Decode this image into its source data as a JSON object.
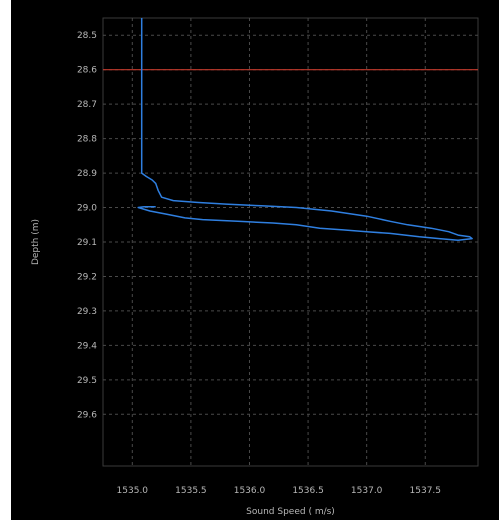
{
  "chart_data": {
    "type": "line",
    "title": "",
    "xlabel": "Sound Speed ( m/s)",
    "ylabel": "Depth (m)",
    "xlim": [
      1534.75,
      1537.95
    ],
    "ylim": [
      28.45,
      29.75
    ],
    "y_inverted": true,
    "grid": true,
    "x_ticks": [
      "1535.0",
      "1535.5",
      "1536.0",
      "1536.5",
      "1537.0",
      "1537.5"
    ],
    "x_tick_values": [
      1535.0,
      1535.5,
      1536.0,
      1536.5,
      1537.0,
      1537.5
    ],
    "y_ticks": [
      "28.5",
      "28.6",
      "28.7",
      "28.8",
      "28.9",
      "29.0",
      "29.1",
      "29.2",
      "29.3",
      "29.4",
      "29.5",
      "29.6"
    ],
    "y_tick_values": [
      28.5,
      28.6,
      28.7,
      28.8,
      28.9,
      29.0,
      29.1,
      29.2,
      29.3,
      29.4,
      29.5,
      29.6
    ],
    "reference_line": {
      "depth": 28.6,
      "color": "#c0392b"
    },
    "series": [
      {
        "color": "#2f7fe0",
        "points": [
          [
            1535.08,
            28.45
          ],
          [
            1535.08,
            28.6
          ],
          [
            1535.08,
            28.75
          ],
          [
            1535.08,
            28.9
          ],
          [
            1535.12,
            28.91
          ],
          [
            1535.17,
            28.92
          ],
          [
            1535.2,
            28.93
          ],
          [
            1535.22,
            28.95
          ],
          [
            1535.25,
            28.97
          ],
          [
            1535.35,
            28.98
          ],
          [
            1535.55,
            28.985
          ],
          [
            1535.8,
            28.99
          ],
          [
            1536.1,
            28.995
          ],
          [
            1536.4,
            29.0
          ],
          [
            1536.7,
            29.01
          ],
          [
            1537.0,
            29.025
          ],
          [
            1537.2,
            29.04
          ],
          [
            1537.35,
            29.05
          ],
          [
            1537.55,
            29.06
          ],
          [
            1537.7,
            29.07
          ],
          [
            1537.78,
            29.08
          ],
          [
            1537.88,
            29.085
          ],
          [
            1537.9,
            29.09
          ],
          [
            1537.78,
            29.095
          ],
          [
            1537.62,
            29.09
          ],
          [
            1537.45,
            29.085
          ],
          [
            1537.2,
            29.075
          ],
          [
            1537.0,
            29.07
          ],
          [
            1536.8,
            29.065
          ],
          [
            1536.6,
            29.06
          ],
          [
            1536.4,
            29.05
          ],
          [
            1536.2,
            29.045
          ],
          [
            1535.9,
            29.04
          ],
          [
            1535.6,
            29.035
          ],
          [
            1535.45,
            29.03
          ],
          [
            1535.3,
            29.02
          ],
          [
            1535.15,
            29.01
          ],
          [
            1535.05,
            29.0
          ],
          [
            1535.1,
            28.998
          ],
          [
            1535.2,
            28.998
          ]
        ]
      }
    ]
  }
}
